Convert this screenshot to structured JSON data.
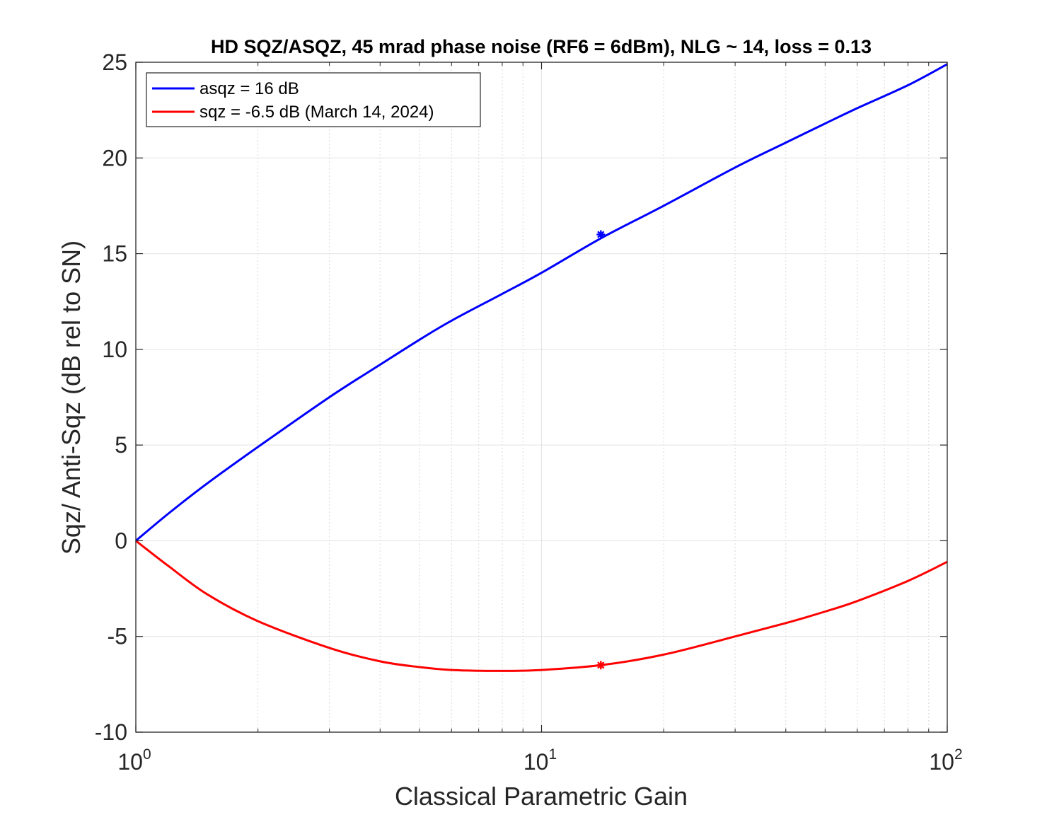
{
  "chart_data": {
    "type": "line",
    "title": "HD SQZ/ASQZ, 45 mrad phase noise (RF6 = 6dBm), NLG ~ 14, loss = 0.13",
    "xlabel": "Classical Parametric Gain",
    "ylabel": "Sqz/ Anti-Sqz (dB rel to SN)",
    "xscale": "log",
    "xlim": [
      1,
      100
    ],
    "ylim": [
      -10,
      25
    ],
    "xticks": [
      {
        "base": "10",
        "exp": "0",
        "value": 1
      },
      {
        "base": "10",
        "exp": "1",
        "value": 10
      },
      {
        "base": "10",
        "exp": "2",
        "value": 100
      }
    ],
    "yticks": [
      "-10",
      "-5",
      "0",
      "5",
      "10",
      "15",
      "20",
      "25"
    ],
    "grid": true,
    "minor_grid": true,
    "legend_position": "top-left",
    "series": [
      {
        "name": "asqz = 16 dB",
        "color": "#0000ff",
        "x": [
          1,
          1.2,
          1.5,
          2,
          3,
          4,
          5,
          6,
          8,
          10,
          14,
          20,
          30,
          40,
          50,
          60,
          80,
          100
        ],
        "y": [
          0,
          1.4,
          3.0,
          4.9,
          7.5,
          9.2,
          10.5,
          11.5,
          12.9,
          14.0,
          15.8,
          17.5,
          19.5,
          20.8,
          21.8,
          22.6,
          23.8,
          24.9
        ]
      },
      {
        "name": "sqz = -6.5 dB (March 14, 2024)",
        "color": "#ff0000",
        "x": [
          1,
          1.2,
          1.5,
          2,
          3,
          4,
          5,
          6,
          8,
          10,
          14,
          20,
          30,
          40,
          50,
          60,
          80,
          100
        ],
        "y": [
          0,
          -1.3,
          -2.8,
          -4.2,
          -5.6,
          -6.3,
          -6.6,
          -6.75,
          -6.8,
          -6.75,
          -6.5,
          -5.95,
          -5.0,
          -4.3,
          -3.7,
          -3.15,
          -2.1,
          -1.1
        ]
      }
    ],
    "markers": [
      {
        "series": "asqz = 16 dB",
        "x": 14,
        "y": 16,
        "color": "#0000ff",
        "symbol": "*"
      },
      {
        "series": "sqz = -6.5 dB (March 14, 2024)",
        "x": 14,
        "y": -6.5,
        "color": "#ff0000",
        "symbol": "*"
      }
    ]
  }
}
